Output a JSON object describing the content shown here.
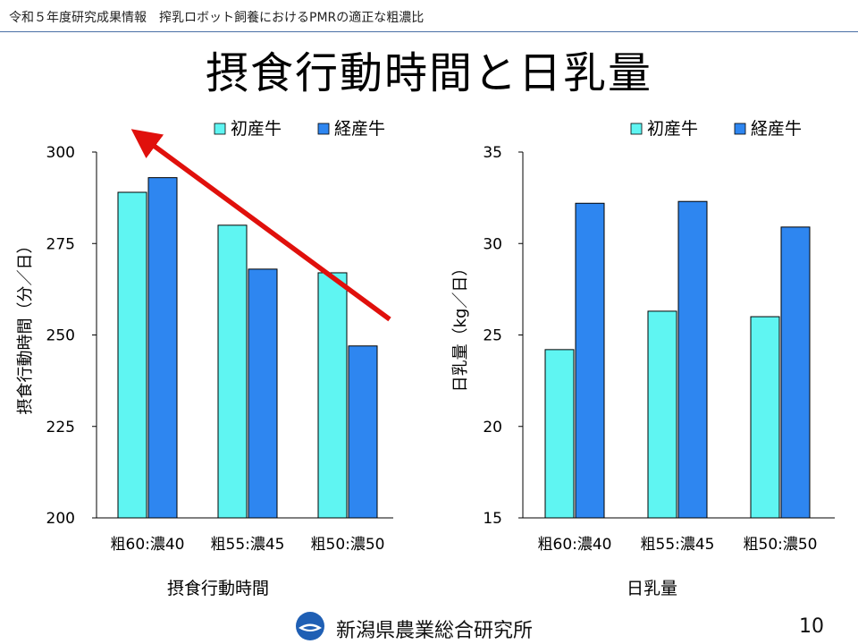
{
  "header": {
    "text": "令和５年度研究成果情報　搾乳ロボット飼養におけるPMRの適正な粗濃比"
  },
  "title": "摂食行動時間と日乳量",
  "colors": {
    "primiparous": "#5ff5f2",
    "multiparous": "#2e86f0",
    "arrow": "#e0100c",
    "header_rule": "#4a6fa5"
  },
  "chart_data": [
    {
      "type": "bar",
      "title": "摂食行動時間",
      "ylabel": "摂食行動時間（分／日）",
      "xlabel": "",
      "ylim": [
        200,
        300
      ],
      "yticks": [
        200,
        225,
        250,
        275,
        300
      ],
      "categories": [
        "粗60:濃40",
        "粗55:濃45",
        "粗50:濃50"
      ],
      "series": [
        {
          "name": "初産牛",
          "color": "#5ff5f2",
          "values": [
            289,
            280,
            267
          ]
        },
        {
          "name": "経産牛",
          "color": "#2e86f0",
          "values": [
            293,
            268,
            247
          ]
        }
      ],
      "legend": "top",
      "annotation": "red arrow pointing upward to the left (trend)"
    },
    {
      "type": "bar",
      "title": "日乳量",
      "ylabel": "日乳量（kg／日）",
      "xlabel": "",
      "ylim": [
        15,
        35
      ],
      "yticks": [
        15,
        20,
        25,
        30,
        35
      ],
      "categories": [
        "粗60:濃40",
        "粗55:濃45",
        "粗50:濃50"
      ],
      "series": [
        {
          "name": "初産牛",
          "color": "#5ff5f2",
          "values": [
            24.2,
            26.3,
            26.0
          ]
        },
        {
          "name": "経産牛",
          "color": "#2e86f0",
          "values": [
            32.2,
            32.3,
            30.9
          ]
        }
      ],
      "legend": "top"
    }
  ],
  "footer": {
    "org": "新潟県農業総合研究所",
    "logo": "niigata-prefecture-logo",
    "page": "10"
  }
}
